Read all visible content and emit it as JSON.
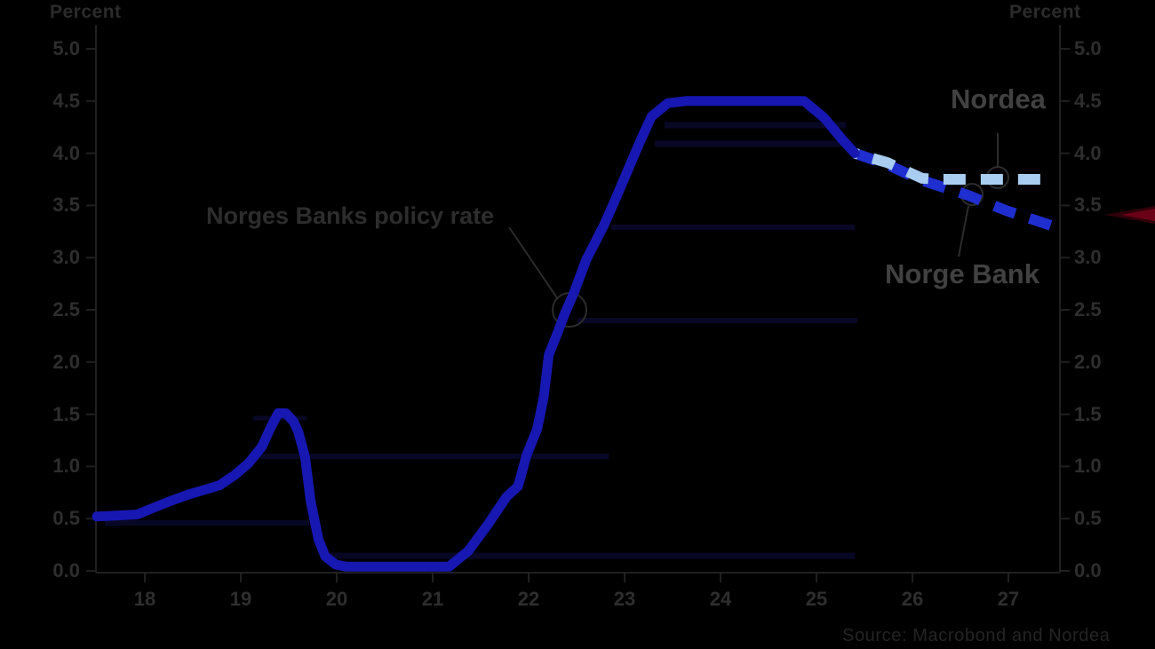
{
  "page": {
    "background": "#000000"
  },
  "axes": {
    "left_title": "Percent",
    "right_title": "Percent",
    "y_ticks": [
      "5.0",
      "4.5",
      "4.0",
      "3.5",
      "3.0",
      "2.5",
      "2.0",
      "1.5",
      "1.0",
      "0.5",
      "0.0"
    ],
    "y_values": [
      5.0,
      4.5,
      4.0,
      3.5,
      3.0,
      2.5,
      2.0,
      1.5,
      1.0,
      0.5,
      0.0
    ],
    "x_ticks": [
      "18",
      "19",
      "20",
      "21",
      "22",
      "23",
      "24",
      "25",
      "26",
      "27"
    ],
    "x_years": [
      2018.5,
      2019.5,
      2020.5,
      2021.5,
      2022.5,
      2023.5,
      2024.5,
      2025.5,
      2026.5,
      2027.5
    ]
  },
  "annotations": {
    "policy_rate": "Norges Banks policy rate",
    "nordea": "Nordea",
    "norges_bank": "Norge Bank"
  },
  "source": {
    "text": "Source: Macrobond and Nordea"
  },
  "colors": {
    "background": "#000000",
    "history_line": "#1717b2",
    "nordea_forecast": "#a8cdf0",
    "norges_bank_forecast": "#1f2ece",
    "axis": "#202020",
    "annotation_ring": "#2c2c2c",
    "ghost_bar": "#0e0e46",
    "edge_arrow": "#6a0015",
    "tick_text": "#2e2e2e",
    "label_text": "#414141"
  },
  "chart_data": {
    "type": "line",
    "title": "Norges Banks policy rate",
    "ylabel": "Percent",
    "ylim": [
      0,
      5
    ],
    "xlim": [
      2018,
      2028
    ],
    "x_tick_labels": [
      "18",
      "19",
      "20",
      "21",
      "22",
      "23",
      "24",
      "25",
      "26",
      "27"
    ],
    "grid": false,
    "legend_position": "inline-annotations",
    "series": [
      {
        "name": "Policy rate (history)",
        "style": "solid",
        "color": "#1717b2",
        "points": [
          [
            2018.0,
            0.52
          ],
          [
            2018.42,
            0.54
          ],
          [
            2018.58,
            0.6
          ],
          [
            2018.77,
            0.67
          ],
          [
            2018.95,
            0.73
          ],
          [
            2019.1,
            0.77
          ],
          [
            2019.28,
            0.82
          ],
          [
            2019.44,
            0.92
          ],
          [
            2019.58,
            1.03
          ],
          [
            2019.72,
            1.19
          ],
          [
            2019.81,
            1.37
          ],
          [
            2019.89,
            1.51
          ],
          [
            2019.97,
            1.51
          ],
          [
            2020.05,
            1.43
          ],
          [
            2020.1,
            1.33
          ],
          [
            2020.17,
            1.09
          ],
          [
            2020.23,
            0.66
          ],
          [
            2020.31,
            0.3
          ],
          [
            2020.38,
            0.14
          ],
          [
            2020.49,
            0.06
          ],
          [
            2020.6,
            0.04
          ],
          [
            2021.67,
            0.04
          ],
          [
            2021.87,
            0.19
          ],
          [
            2022.08,
            0.45
          ],
          [
            2022.27,
            0.71
          ],
          [
            2022.39,
            0.81
          ],
          [
            2022.48,
            1.11
          ],
          [
            2022.59,
            1.36
          ],
          [
            2022.66,
            1.68
          ],
          [
            2022.71,
            2.07
          ],
          [
            2022.81,
            2.3
          ],
          [
            2022.88,
            2.47
          ],
          [
            2022.97,
            2.66
          ],
          [
            2023.1,
            2.98
          ],
          [
            2023.29,
            3.32
          ],
          [
            2023.4,
            3.55
          ],
          [
            2023.54,
            3.85
          ],
          [
            2023.66,
            4.11
          ],
          [
            2023.78,
            4.35
          ],
          [
            2023.95,
            4.48
          ],
          [
            2024.14,
            4.5
          ],
          [
            2025.37,
            4.5
          ],
          [
            2025.58,
            4.34
          ],
          [
            2025.77,
            4.13
          ],
          [
            2025.9,
            4.0
          ]
        ]
      },
      {
        "name": "Nordea forecast",
        "style": "dashed",
        "color": "#a8cdf0",
        "points": [
          [
            2025.9,
            4.0
          ],
          [
            2026.24,
            3.91
          ],
          [
            2026.6,
            3.76
          ],
          [
            2026.75,
            3.75
          ],
          [
            2027.92,
            3.75
          ]
        ]
      },
      {
        "name": "Norges Bank forecast",
        "style": "dashed",
        "color": "#1f2ece",
        "points": [
          [
            2025.9,
            4.0
          ],
          [
            2026.24,
            3.89
          ],
          [
            2026.6,
            3.74
          ],
          [
            2027.07,
            3.6
          ],
          [
            2027.48,
            3.45
          ],
          [
            2027.97,
            3.3
          ]
        ]
      }
    ]
  }
}
